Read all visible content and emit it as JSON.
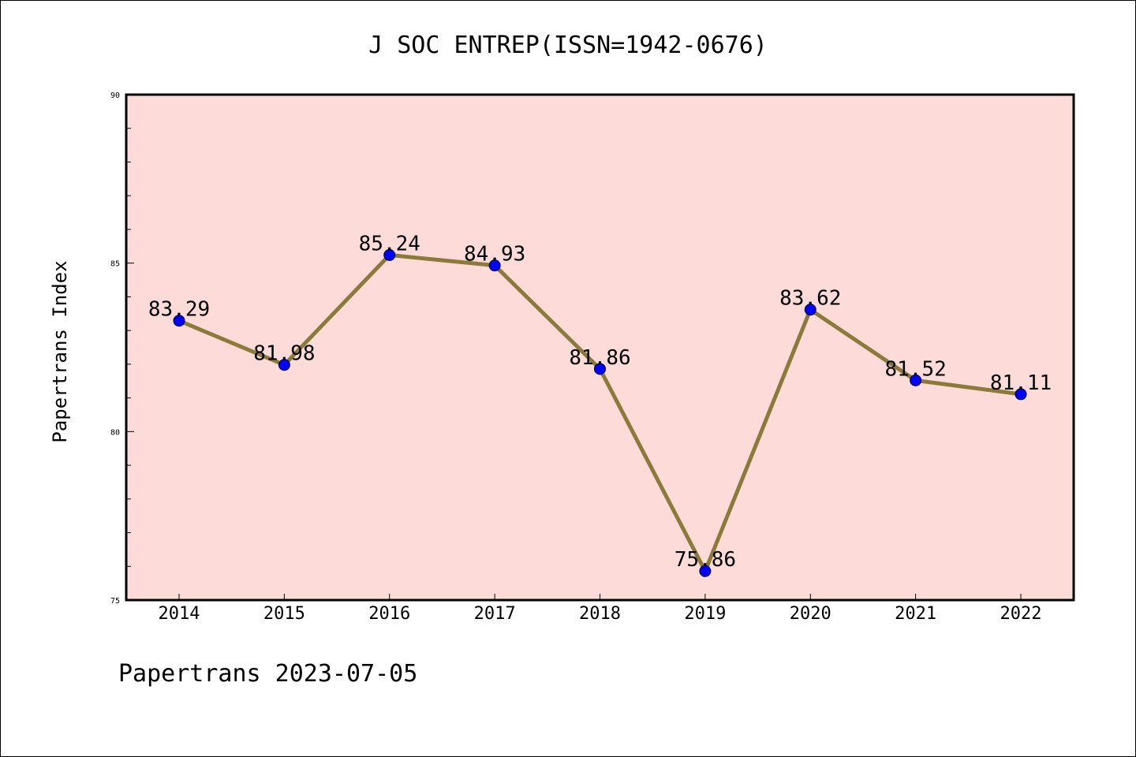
{
  "chart_data": {
    "type": "line",
    "title": "J SOC ENTREP(ISSN=1942-0676)",
    "xlabel": "",
    "ylabel": "Papertrans Index",
    "footer": "Papertrans 2023-07-05",
    "categories": [
      "2014",
      "2015",
      "2016",
      "2017",
      "2018",
      "2019",
      "2020",
      "2021",
      "2022"
    ],
    "series": [
      {
        "values": [
          83.29,
          81.98,
          85.24,
          84.93,
          81.86,
          75.86,
          83.62,
          81.52,
          81.11
        ],
        "labels": [
          "83.29",
          "81.98",
          "85.24",
          "84.93",
          "81.86",
          "75.86",
          "83.62",
          "81.52",
          "81.11"
        ]
      }
    ],
    "ylim": [
      75,
      90
    ],
    "yticks": [
      "75",
      "80",
      "85",
      "90"
    ],
    "grid": false,
    "legend": "none",
    "colors": {
      "plot_background": "#fddbd8",
      "line": "#8c7a3a",
      "marker": "#0000ff"
    }
  }
}
